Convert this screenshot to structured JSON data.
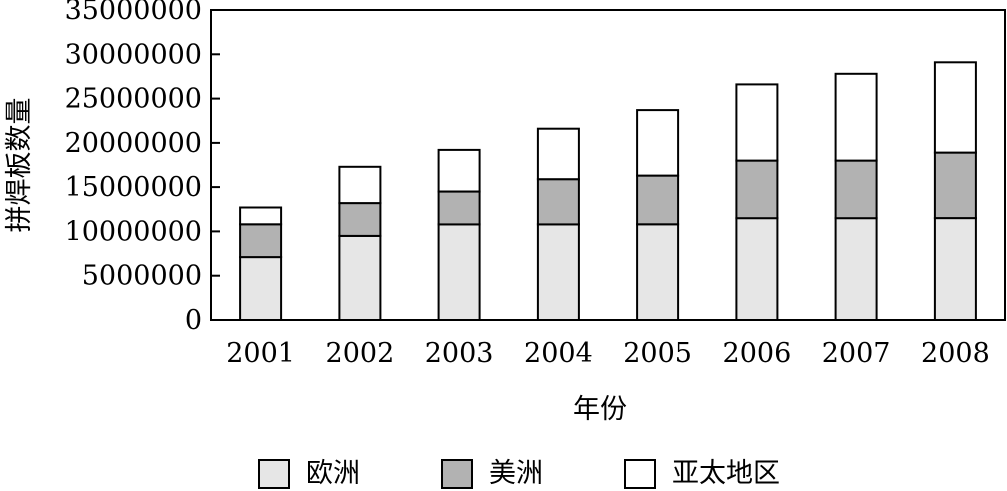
{
  "chart_data": {
    "type": "bar",
    "stacked": true,
    "title": "",
    "xlabel": "年份",
    "ylabel": "拼焊板数量",
    "categories": [
      "2001",
      "2002",
      "2003",
      "2004",
      "2005",
      "2006",
      "2007",
      "2008"
    ],
    "series": [
      {
        "name": "欧洲",
        "color": "#e6e6e6",
        "values": [
          7100000,
          9500000,
          10800000,
          10800000,
          10800000,
          11500000,
          11500000,
          11500000
        ]
      },
      {
        "name": "美洲",
        "color": "#b2b2b2",
        "values": [
          3700000,
          3700000,
          3700000,
          5100000,
          5500000,
          6500000,
          6500000,
          7400000
        ]
      },
      {
        "name": "亚太地区",
        "color": "#ffffff",
        "values": [
          1900000,
          4100000,
          4700000,
          5700000,
          7400000,
          8600000,
          9800000,
          10200000
        ]
      }
    ],
    "ylim": [
      0,
      35000000
    ],
    "yticks": [
      "0",
      "5000000",
      "10000000",
      "15000000",
      "20000000",
      "25000000",
      "30000000",
      "35000000"
    ],
    "grid": false,
    "legend_position": "bottom"
  }
}
